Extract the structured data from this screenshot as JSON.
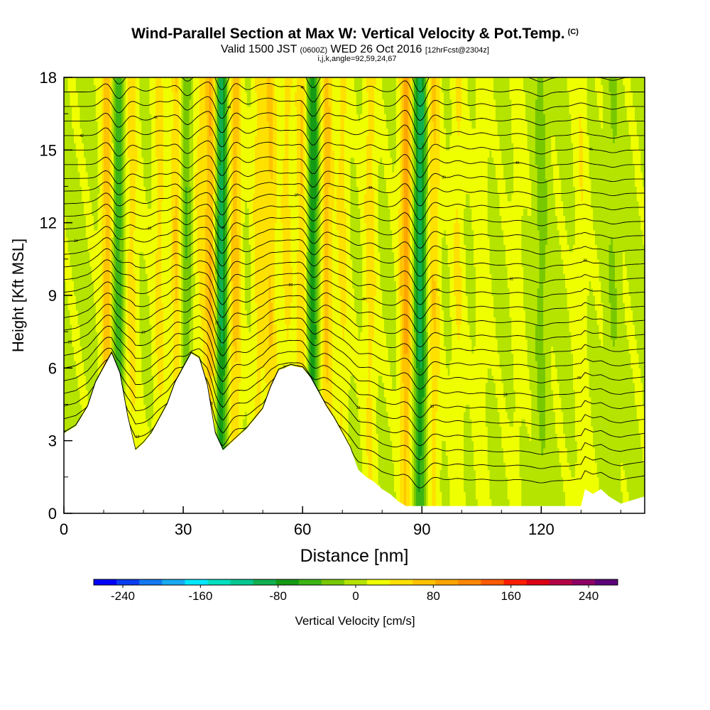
{
  "titles": {
    "main": "Wind-Parallel Section at Max W: Vertical Velocity & Pot.Temp.",
    "main_tag": "(C)",
    "valid_a": "Valid 1500 JST",
    "valid_b": "(0600Z)",
    "valid_c": "WED 26 Oct 2016",
    "valid_d": "[12hrFcst@2304z]",
    "indices": "i,j,k,angle=92,59,24,67"
  },
  "chart_data": {
    "type": "heatmap",
    "xlabel": "Distance [nm]",
    "ylabel": "Height [Kft MSL]",
    "xlim": [
      0,
      146
    ],
    "ylim": [
      0,
      18
    ],
    "x_ticks": [
      0,
      30,
      60,
      90,
      120
    ],
    "y_ticks": [
      0,
      3,
      6,
      9,
      12,
      15,
      18
    ],
    "colorbar": {
      "label": "Vertical Velocity [cm/s]",
      "ticks": [
        -240,
        -160,
        -80,
        0,
        80,
        160,
        240
      ],
      "range": [
        -270,
        270
      ],
      "colors": [
        "#0000ff",
        "#0a3cf0",
        "#1478f0",
        "#18aaf0",
        "#00e8ff",
        "#00e0c0",
        "#00c890",
        "#10b050",
        "#149a14",
        "#3cb414",
        "#78c800",
        "#b4e400",
        "#f0ff00",
        "#ffe100",
        "#ffc300",
        "#ffa500",
        "#ff8700",
        "#ff5a00",
        "#ff1e00",
        "#dc0014",
        "#b40046",
        "#8c0064",
        "#5a0078"
      ]
    },
    "terrain_kft": [
      [
        0,
        3.3
      ],
      [
        3,
        3.6
      ],
      [
        6,
        4.4
      ],
      [
        8,
        5.4
      ],
      [
        10,
        6.0
      ],
      [
        12,
        6.6
      ],
      [
        14,
        5.8
      ],
      [
        16,
        4.0
      ],
      [
        18,
        2.6
      ],
      [
        20,
        2.9
      ],
      [
        22,
        3.3
      ],
      [
        24,
        3.9
      ],
      [
        26,
        4.5
      ],
      [
        28,
        5.4
      ],
      [
        30,
        6.0
      ],
      [
        32,
        6.6
      ],
      [
        34,
        6.4
      ],
      [
        36,
        5.3
      ],
      [
        38,
        3.3
      ],
      [
        40,
        2.6
      ],
      [
        42,
        2.9
      ],
      [
        44,
        3.2
      ],
      [
        46,
        3.5
      ],
      [
        48,
        3.9
      ],
      [
        50,
        4.3
      ],
      [
        52,
        5.2
      ],
      [
        54,
        5.9
      ],
      [
        57,
        6.1
      ],
      [
        60,
        6.0
      ],
      [
        62,
        5.6
      ],
      [
        64,
        5.0
      ],
      [
        66,
        4.4
      ],
      [
        68,
        3.9
      ],
      [
        70,
        3.3
      ],
      [
        72,
        2.7
      ],
      [
        74,
        1.8
      ],
      [
        76,
        1.5
      ],
      [
        78,
        1.3
      ],
      [
        80,
        1.0
      ],
      [
        82,
        0.8
      ],
      [
        84,
        0.5
      ],
      [
        86,
        0.3
      ],
      [
        90,
        0.3
      ],
      [
        100,
        0.3
      ],
      [
        130,
        0.3
      ],
      [
        131,
        1.0
      ],
      [
        133,
        0.8
      ],
      [
        135,
        1.0
      ],
      [
        137,
        0.7
      ],
      [
        140,
        0.4
      ],
      [
        142,
        0.5
      ],
      [
        146,
        0.7
      ]
    ],
    "w_features": [
      {
        "x": 11,
        "w": 70
      },
      {
        "x": 13.5,
        "w": -65
      },
      {
        "x": 17,
        "w": 40
      },
      {
        "x": 24,
        "w": 35
      },
      {
        "x": 28.5,
        "w": 60
      },
      {
        "x": 30.5,
        "w": -50
      },
      {
        "x": 34,
        "w": 30
      },
      {
        "x": 37,
        "w": 80
      },
      {
        "x": 39.5,
        "w": -110
      },
      {
        "x": 43,
        "w": 65
      },
      {
        "x": 49,
        "w": 40
      },
      {
        "x": 52,
        "w": 50
      },
      {
        "x": 56,
        "w": 35
      },
      {
        "x": 60,
        "w": 55
      },
      {
        "x": 62.5,
        "w": -90
      },
      {
        "x": 66,
        "w": 60
      },
      {
        "x": 70,
        "w": 35
      },
      {
        "x": 77,
        "w": 40
      },
      {
        "x": 86,
        "w": 85
      },
      {
        "x": 89.5,
        "w": -110
      },
      {
        "x": 93,
        "w": 50
      },
      {
        "x": 99,
        "w": 30
      },
      {
        "x": 105,
        "w": 20
      },
      {
        "x": 114,
        "w": 15
      },
      {
        "x": 120,
        "w": -30
      },
      {
        "x": 130,
        "w": 25
      },
      {
        "x": 138,
        "w": -20
      }
    ],
    "isentropes": {
      "count": 29,
      "lowest_kft": 1.2,
      "spacing_kft": 0.6,
      "labels": [
        "18",
        "19",
        "20",
        "21",
        "22",
        "23",
        "24",
        "25",
        "26",
        "27",
        "28",
        "29",
        "30",
        "31",
        "32",
        "33",
        "34",
        "35",
        "36",
        "37",
        "38",
        "39",
        "40",
        "41",
        "42",
        "43",
        "44",
        "45",
        "46"
      ]
    }
  }
}
